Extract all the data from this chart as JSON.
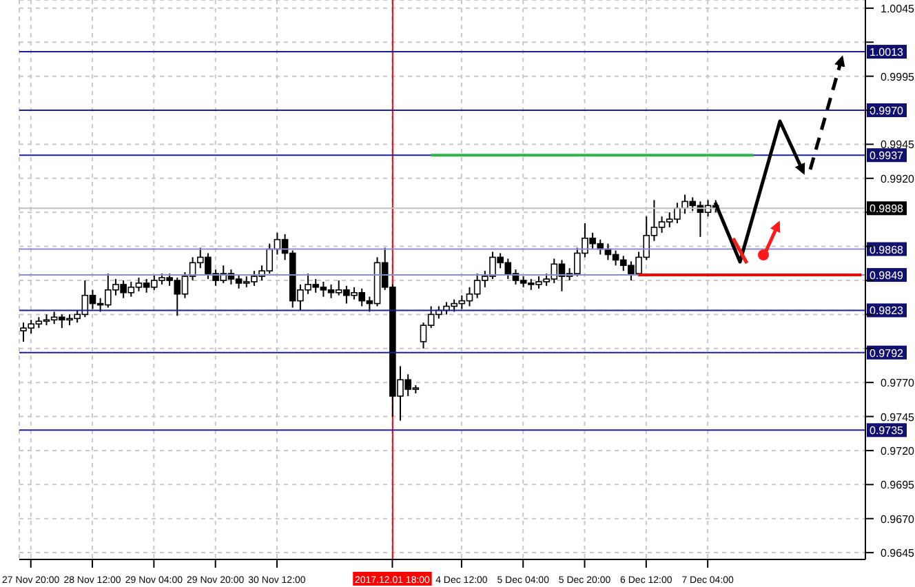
{
  "chart_data": {
    "type": "candlestick",
    "color": "#000000",
    "grid": true,
    "categories": [
      null,
      "27 Nov 20:00",
      null,
      null,
      null,
      null,
      null,
      null,
      null,
      "28 Nov 12:00",
      null,
      null,
      null,
      null,
      null,
      null,
      null,
      "29 Nov 04:00",
      null,
      null,
      null,
      null,
      null,
      null,
      null,
      "29 Nov 20:00",
      null,
      null,
      null,
      null,
      null,
      null,
      null,
      "30 Nov 12:00",
      null,
      null,
      null,
      null,
      null,
      null,
      null,
      null,
      null,
      null,
      null,
      null,
      null,
      null,
      "2017.12.01 18:00",
      null,
      null,
      null,
      null,
      null,
      null,
      null,
      null,
      "4 Dec 12:00",
      null,
      null,
      null,
      null,
      null,
      null,
      null,
      "5 Dec 04:00",
      null,
      null,
      null,
      null,
      null,
      null,
      null,
      "5 Dec 20:00",
      null,
      null,
      null,
      null,
      null,
      null,
      null,
      "6 Dec 12:00",
      null,
      null,
      null,
      null,
      null,
      null,
      null,
      "7 Dec 04:00",
      null,
      null,
      null,
      null,
      null,
      null,
      null,
      null,
      null,
      null,
      null,
      null,
      null,
      null,
      null,
      null,
      null,
      null,
      null,
      null
    ],
    "ohlc": [
      [
        0.9808,
        0.9814,
        0.98,
        0.981
      ],
      [
        0.981,
        0.9816,
        0.9806,
        0.9813
      ],
      [
        0.9813,
        0.9818,
        0.981,
        0.9815
      ],
      [
        0.9815,
        0.982,
        0.9812,
        0.9816
      ],
      [
        0.9816,
        0.9822,
        0.9813,
        0.9818
      ],
      [
        0.9818,
        0.982,
        0.981,
        0.9816
      ],
      [
        0.9816,
        0.982,
        0.9812,
        0.9817
      ],
      [
        0.9817,
        0.9823,
        0.9814,
        0.982
      ],
      [
        0.982,
        0.9845,
        0.9818,
        0.9834
      ],
      [
        0.9834,
        0.9838,
        0.9824,
        0.9828
      ],
      [
        0.9828,
        0.9832,
        0.9822,
        0.9827
      ],
      [
        0.9827,
        0.985,
        0.9825,
        0.9838
      ],
      [
        0.9838,
        0.9846,
        0.9834,
        0.9842
      ],
      [
        0.9842,
        0.9845,
        0.9832,
        0.9836
      ],
      [
        0.9836,
        0.9844,
        0.9833,
        0.984
      ],
      [
        0.984,
        0.9847,
        0.9837,
        0.9843
      ],
      [
        0.9843,
        0.9846,
        0.9836,
        0.984
      ],
      [
        0.984,
        0.9849,
        0.9838,
        0.9845
      ],
      [
        0.9845,
        0.985,
        0.9842,
        0.9847
      ],
      [
        0.9847,
        0.985,
        0.9841,
        0.9845
      ],
      [
        0.9845,
        0.9847,
        0.9819,
        0.9835
      ],
      [
        0.9835,
        0.9851,
        0.9832,
        0.9848
      ],
      [
        0.9848,
        0.9862,
        0.9845,
        0.9858
      ],
      [
        0.9858,
        0.9869,
        0.9854,
        0.9862
      ],
      [
        0.9862,
        0.9865,
        0.9846,
        0.985
      ],
      [
        0.985,
        0.9853,
        0.9841,
        0.9845
      ],
      [
        0.9845,
        0.9856,
        0.9843,
        0.985
      ],
      [
        0.985,
        0.9853,
        0.9842,
        0.9846
      ],
      [
        0.9846,
        0.9849,
        0.9839,
        0.9843
      ],
      [
        0.9843,
        0.9848,
        0.984,
        0.9844
      ],
      [
        0.9844,
        0.9852,
        0.9841,
        0.9848
      ],
      [
        0.9848,
        0.9856,
        0.9845,
        0.9852
      ],
      [
        0.9852,
        0.9872,
        0.985,
        0.9868
      ],
      [
        0.9868,
        0.988,
        0.9864,
        0.9875
      ],
      [
        0.9875,
        0.9879,
        0.986,
        0.9865
      ],
      [
        0.9865,
        0.9867,
        0.9825,
        0.983
      ],
      [
        0.983,
        0.9842,
        0.9823,
        0.9838
      ],
      [
        0.9838,
        0.985,
        0.9835,
        0.9842
      ],
      [
        0.9842,
        0.9846,
        0.9836,
        0.984
      ],
      [
        0.984,
        0.9844,
        0.9833,
        0.9838
      ],
      [
        0.9838,
        0.9842,
        0.9832,
        0.9836
      ],
      [
        0.9836,
        0.9845,
        0.9834,
        0.9838
      ],
      [
        0.9838,
        0.9841,
        0.9828,
        0.9834
      ],
      [
        0.9834,
        0.984,
        0.9831,
        0.9836
      ],
      [
        0.9836,
        0.9839,
        0.9826,
        0.983
      ],
      [
        0.983,
        0.9833,
        0.9822,
        0.9828
      ],
      [
        0.9828,
        0.9862,
        0.9826,
        0.9858
      ],
      [
        0.9858,
        0.9869,
        0.9838,
        0.984
      ],
      [
        0.984,
        0.9842,
        0.9745,
        0.976
      ],
      [
        0.976,
        0.9782,
        0.9742,
        0.9772
      ],
      [
        0.9772,
        0.9776,
        0.976,
        0.9765
      ],
      [
        0.9765,
        0.9768,
        0.9762,
        0.9766
      ],
      [
        0.98,
        0.9814,
        0.9795,
        0.9812
      ],
      [
        0.9812,
        0.9826,
        0.981,
        0.982
      ],
      [
        0.982,
        0.9826,
        0.9817,
        0.9823
      ],
      [
        0.9823,
        0.9829,
        0.982,
        0.9826
      ],
      [
        0.9826,
        0.9831,
        0.9822,
        0.9828
      ],
      [
        0.9828,
        0.9834,
        0.9824,
        0.983
      ],
      [
        0.983,
        0.984,
        0.9826,
        0.9835
      ],
      [
        0.9835,
        0.985,
        0.9832,
        0.9845
      ],
      [
        0.9845,
        0.9852,
        0.984,
        0.9848
      ],
      [
        0.9848,
        0.9866,
        0.9846,
        0.9862
      ],
      [
        0.9862,
        0.9865,
        0.9854,
        0.9858
      ],
      [
        0.9858,
        0.9861,
        0.9846,
        0.985
      ],
      [
        0.985,
        0.9853,
        0.9842,
        0.9845
      ],
      [
        0.9845,
        0.9848,
        0.984,
        0.9843
      ],
      [
        0.9843,
        0.9846,
        0.9838,
        0.9842
      ],
      [
        0.9842,
        0.9848,
        0.9839,
        0.9844
      ],
      [
        0.9844,
        0.985,
        0.9841,
        0.9846
      ],
      [
        0.9846,
        0.9861,
        0.9843,
        0.9857
      ],
      [
        0.9857,
        0.986,
        0.9837,
        0.9848
      ],
      [
        0.9848,
        0.9854,
        0.9845,
        0.985
      ],
      [
        0.985,
        0.9869,
        0.9848,
        0.9865
      ],
      [
        0.9865,
        0.9887,
        0.9862,
        0.9876
      ],
      [
        0.9876,
        0.988,
        0.9868,
        0.9872
      ],
      [
        0.9872,
        0.9875,
        0.9864,
        0.9868
      ],
      [
        0.9868,
        0.9872,
        0.986,
        0.9864
      ],
      [
        0.9864,
        0.9867,
        0.9856,
        0.986
      ],
      [
        0.986,
        0.9863,
        0.9852,
        0.9856
      ],
      [
        0.9856,
        0.9859,
        0.9845,
        0.985
      ],
      [
        0.985,
        0.9866,
        0.9848,
        0.9862
      ],
      [
        0.9862,
        0.9892,
        0.986,
        0.9878
      ],
      [
        0.9878,
        0.9904,
        0.9874,
        0.9884
      ],
      [
        0.9884,
        0.9892,
        0.988,
        0.9888
      ],
      [
        0.9888,
        0.9895,
        0.9884,
        0.989
      ],
      [
        0.989,
        0.9902,
        0.9887,
        0.9898
      ],
      [
        0.9898,
        0.9908,
        0.9894,
        0.9903
      ],
      [
        0.9903,
        0.9906,
        0.9896,
        0.99
      ],
      [
        0.99,
        0.9903,
        0.9877,
        0.9895
      ],
      [
        0.9895,
        0.9904,
        0.9892,
        0.99
      ],
      [
        0.99,
        0.9904,
        0.9895,
        0.9898
      ],
      null,
      null,
      null,
      null,
      null,
      null,
      null,
      null,
      null,
      null,
      null,
      null,
      null,
      null,
      null,
      null,
      null,
      null,
      null
    ],
    "series": [
      {
        "type": "line",
        "color": "#2db34a",
        "values": [
          null,
          null,
          null,
          null,
          null,
          null,
          null,
          null,
          null,
          null,
          null,
          null,
          null,
          null,
          null,
          null,
          null,
          null,
          null,
          null,
          null,
          null,
          null,
          null,
          null,
          null,
          null,
          null,
          null,
          null,
          null,
          null,
          null,
          null,
          null,
          null,
          null,
          null,
          null,
          null,
          null,
          null,
          null,
          null,
          null,
          null,
          null,
          null,
          null,
          null,
          null,
          null,
          null,
          0.9937,
          0.9937,
          0.9937,
          0.9937,
          0.9937,
          0.9937,
          0.9937,
          0.9937,
          0.9937,
          0.9937,
          0.9937,
          0.9937,
          0.9937,
          0.9937,
          0.9937,
          0.9937,
          0.9937,
          0.9937,
          0.9937,
          0.9937,
          0.9937,
          0.9937,
          0.9937,
          0.9937,
          0.9937,
          0.9937,
          0.9937,
          0.9937,
          0.9937,
          0.9937,
          0.9937,
          0.9937,
          0.9937,
          0.9937,
          0.9937,
          0.9937,
          0.9937,
          0.9937,
          0.9937,
          0.9937,
          0.9937,
          0.9937,
          0.9937,
          null,
          null,
          null,
          null,
          null,
          null,
          null,
          null,
          null,
          null,
          null,
          null,
          null,
          null
        ]
      },
      {
        "type": "line",
        "color": "#ff0000",
        "values": [
          null,
          null,
          null,
          null,
          null,
          null,
          null,
          null,
          null,
          null,
          null,
          null,
          null,
          null,
          null,
          null,
          null,
          null,
          null,
          null,
          null,
          null,
          null,
          null,
          null,
          null,
          null,
          null,
          null,
          null,
          null,
          null,
          null,
          null,
          null,
          null,
          null,
          null,
          null,
          null,
          null,
          null,
          null,
          null,
          null,
          null,
          null,
          null,
          null,
          null,
          null,
          null,
          null,
          null,
          null,
          null,
          null,
          null,
          null,
          null,
          null,
          null,
          null,
          null,
          null,
          null,
          null,
          null,
          null,
          null,
          null,
          null,
          null,
          null,
          null,
          null,
          null,
          null,
          null,
          null,
          0.9849,
          0.9849,
          0.9849,
          0.9849,
          0.9849,
          0.9849,
          0.9849,
          0.9849,
          0.9849,
          0.9849,
          0.9849,
          0.9849,
          0.9849,
          0.9849,
          0.9849,
          0.9849,
          0.9849,
          0.9849,
          0.9849,
          0.9849,
          0.9849,
          0.9849,
          0.9849,
          0.9849,
          0.9849,
          0.9849,
          0.9849,
          0.9849,
          0.9849,
          0.9849
        ]
      }
    ],
    "ylim": [
      0.964,
      1.0051
    ],
    "yticks": [
      1.0045,
      {
        "value": 1.002,
        "label": null
      },
      0.9995,
      {
        "value": 0.997,
        "label": null
      },
      0.9945,
      {
        "value": 0.992,
        "label": "0.9920"
      },
      {
        "value": 0.9895,
        "label": null
      },
      {
        "value": 0.987,
        "label": null
      },
      {
        "value": 0.9845,
        "label": null
      },
      {
        "value": 0.982,
        "label": null
      },
      {
        "value": 0.9795,
        "label": null
      },
      {
        "value": 0.977,
        "label": "0.9770"
      },
      0.9745,
      {
        "value": 0.972,
        "label": "0.9720"
      },
      0.9695,
      {
        "value": 0.967,
        "label": "0.9670"
      },
      0.9645
    ],
    "ref_lines": [
      {
        "axis": "y",
        "value": 1.0013,
        "label": "1.0013",
        "color": "#1e1e96"
      },
      {
        "axis": "y",
        "value": 0.997,
        "label": "0.9970",
        "color": "#1e1e96"
      },
      {
        "axis": "y",
        "value": 0.9937,
        "label": "0.9937",
        "color": "#1e1e96"
      },
      {
        "axis": "y",
        "value": 0.9898,
        "label": "0.9898",
        "color": "#c0c0c0"
      },
      {
        "axis": "y",
        "value": 0.9868,
        "label": "0.9868",
        "color": "#8c8cc8"
      },
      {
        "axis": "y",
        "value": 0.9849,
        "label": "0.9849",
        "color": "#8c8cc8"
      },
      {
        "axis": "y",
        "value": 0.9823,
        "label": "0.9823",
        "color": "#1e1e96"
      },
      {
        "axis": "y",
        "value": 0.9792,
        "label": "0.9792",
        "color": "#1e1e96"
      },
      {
        "axis": "y",
        "value": 0.9735,
        "label": "0.9735",
        "color": "#1e1e96"
      },
      {
        "axis": "x",
        "value": "2017.12.01 18:00",
        "color": "#ff0000"
      }
    ]
  }
}
